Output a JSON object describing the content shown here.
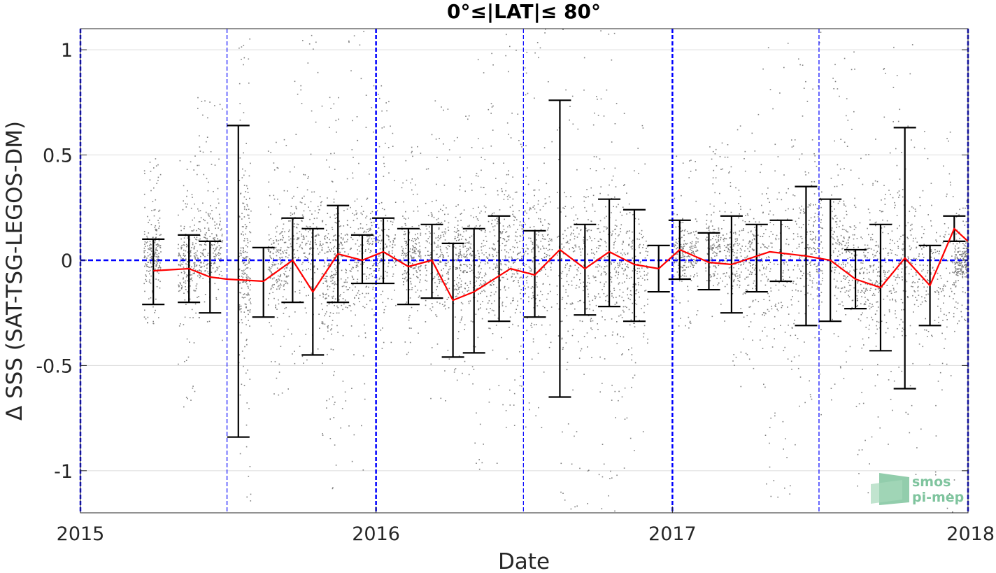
{
  "chart_data": {
    "type": "scatter",
    "title": "0°≤|LAT|≤ 80°",
    "xlabel": "Date",
    "ylabel": "Δ SSS (SAT-TSG-LEGOS-DM)",
    "xlim": [
      "2015-01-01",
      "2018-01-01"
    ],
    "ylim": [
      -1.2,
      1.1
    ],
    "x_ticks": [
      "2015-01-01",
      "2016-01-01",
      "2017-01-01",
      "2018-01-01"
    ],
    "x_tick_labels": [
      "2015",
      "2016",
      "2017",
      "2018"
    ],
    "y_ticks": [
      -1,
      -0.5,
      0,
      0.5,
      1
    ],
    "y_tick_labels": [
      "-1",
      "-0.5",
      "0",
      "0.5",
      "1"
    ],
    "grid": true,
    "legend": "none",
    "year_lines": [
      "2015-01-01",
      "2016-01-01",
      "2017-01-01",
      "2018-01-01"
    ],
    "half_year_lines": [
      "2015-07-01",
      "2016-07-01",
      "2017-07-01"
    ],
    "zero_line": 0,
    "colors": {
      "points": "#7f7f7f",
      "mean_line": "#ff0000",
      "error_bars": "#000000",
      "reference_lines": "#0000ff",
      "grid": "#dcdcdc",
      "logo": "#7fc49e"
    },
    "series": [
      {
        "type": "line",
        "x": [
          "2015-04-01",
          "2015-05-15",
          "2015-06-10",
          "2015-07-01",
          "2015-08-15",
          "2015-09-20",
          "2015-10-15",
          "2015-11-15",
          "2015-12-15",
          "2016-01-10",
          "2016-02-10",
          "2016-03-10",
          "2016-04-05",
          "2016-05-01",
          "2016-06-15",
          "2016-07-15",
          "2016-08-15",
          "2016-09-15",
          "2016-10-15",
          "2016-11-15",
          "2016-12-15",
          "2017-01-10",
          "2017-02-15",
          "2017-03-15",
          "2017-05-01",
          "2017-06-15",
          "2017-07-15",
          "2017-08-15",
          "2017-09-15",
          "2017-10-15",
          "2017-11-15",
          "2017-12-15",
          "2018-01-01"
        ],
        "y": [
          -0.05,
          -0.04,
          -0.08,
          -0.09,
          -0.1,
          0.0,
          -0.15,
          0.03,
          0.0,
          0.04,
          -0.03,
          0.0,
          -0.19,
          -0.15,
          -0.04,
          -0.07,
          0.05,
          -0.04,
          0.04,
          -0.02,
          -0.04,
          0.05,
          -0.01,
          -0.02,
          0.04,
          0.02,
          0.0,
          -0.09,
          -0.13,
          0.01,
          -0.12,
          0.15,
          0.09
        ]
      },
      {
        "type": "errorbar",
        "x": [
          "2015-04-01",
          "2015-05-15",
          "2015-06-10",
          "2015-07-15",
          "2015-08-15",
          "2015-09-20",
          "2015-10-15",
          "2015-11-15",
          "2015-12-15",
          "2016-01-10",
          "2016-02-10",
          "2016-03-10",
          "2016-04-05",
          "2016-05-01",
          "2016-06-01",
          "2016-07-15",
          "2016-08-15",
          "2016-09-15",
          "2016-10-15",
          "2016-11-15",
          "2016-12-15",
          "2017-01-10",
          "2017-02-15",
          "2017-03-15",
          "2017-04-15",
          "2017-05-15",
          "2017-06-15",
          "2017-07-15",
          "2017-08-15",
          "2017-09-15",
          "2017-10-15",
          "2017-11-15",
          "2017-12-15"
        ],
        "upper": [
          0.1,
          0.12,
          0.09,
          0.64,
          0.06,
          0.2,
          0.15,
          0.26,
          0.12,
          0.2,
          0.15,
          0.17,
          0.08,
          0.15,
          0.21,
          0.14,
          0.76,
          0.17,
          0.29,
          0.24,
          0.07,
          0.19,
          0.13,
          0.21,
          0.17,
          0.19,
          0.35,
          0.29,
          0.05,
          0.17,
          0.63,
          0.07,
          0.21
        ],
        "lower": [
          -0.21,
          -0.2,
          -0.25,
          -0.84,
          -0.27,
          -0.2,
          -0.45,
          -0.2,
          -0.11,
          -0.11,
          -0.21,
          -0.18,
          -0.46,
          -0.44,
          -0.29,
          -0.27,
          -0.65,
          -0.26,
          -0.22,
          -0.29,
          -0.15,
          -0.09,
          -0.14,
          -0.25,
          -0.15,
          -0.1,
          -0.31,
          -0.29,
          -0.23,
          -0.43,
          -0.61,
          -0.31,
          0.09
        ]
      },
      {
        "type": "scatter",
        "clusters": [
          {
            "x": [
              "2015-03-20",
              "2015-04-10"
            ],
            "y": [
              -0.3,
              0.5
            ]
          },
          {
            "x": [
              "2015-05-01",
              "2015-05-25"
            ],
            "y": [
              -0.7,
              0.55
            ]
          },
          {
            "x": [
              "2015-05-25",
              "2015-06-25"
            ],
            "y": [
              -0.4,
              0.8
            ]
          },
          {
            "x": [
              "2015-07-15",
              "2015-07-30"
            ],
            "y": [
              -1.2,
              1.1
            ]
          },
          {
            "x": [
              "2015-08-20",
              "2015-09-15"
            ],
            "y": [
              -0.65,
              0.6
            ]
          },
          {
            "x": [
              "2015-09-15",
              "2015-10-25"
            ],
            "y": [
              -0.5,
              1.1
            ]
          },
          {
            "x": [
              "2015-10-25",
              "2015-11-15"
            ],
            "y": [
              -1.1,
              0.85
            ]
          },
          {
            "x": [
              "2015-11-15",
              "2015-12-20"
            ],
            "y": [
              -1.0,
              1.1
            ]
          },
          {
            "x": [
              "2015-12-20",
              "2016-01-25"
            ],
            "y": [
              -0.45,
              0.85
            ]
          },
          {
            "x": [
              "2016-02-01",
              "2016-02-25"
            ],
            "y": [
              -0.45,
              0.55
            ]
          },
          {
            "x": [
              "2016-03-01",
              "2016-04-01"
            ],
            "y": [
              -0.7,
              0.8
            ]
          },
          {
            "x": [
              "2016-04-05",
              "2016-04-30"
            ],
            "y": [
              -0.6,
              0.7
            ]
          },
          {
            "x": [
              "2016-05-01",
              "2016-06-01"
            ],
            "y": [
              -1.05,
              1.0
            ]
          },
          {
            "x": [
              "2016-06-01",
              "2016-07-01"
            ],
            "y": [
              -0.8,
              1.1
            ]
          },
          {
            "x": [
              "2016-07-01",
              "2016-08-05"
            ],
            "y": [
              -0.9,
              1.1
            ]
          },
          {
            "x": [
              "2016-08-10",
              "2016-09-20"
            ],
            "y": [
              -1.2,
              1.1
            ]
          },
          {
            "x": [
              "2016-09-20",
              "2016-10-25"
            ],
            "y": [
              -1.2,
              1.1
            ]
          },
          {
            "x": [
              "2016-10-25",
              "2016-12-01"
            ],
            "y": [
              -1.0,
              0.85
            ]
          },
          {
            "x": [
              "2017-01-01",
              "2017-02-01"
            ],
            "y": [
              -0.35,
              0.55
            ]
          },
          {
            "x": [
              "2017-02-10",
              "2017-03-15"
            ],
            "y": [
              -0.35,
              0.6
            ]
          },
          {
            "x": [
              "2017-03-15",
              "2017-04-20"
            ],
            "y": [
              -0.6,
              0.7
            ]
          },
          {
            "x": [
              "2017-04-20",
              "2017-06-05"
            ],
            "y": [
              -1.2,
              1.1
            ]
          },
          {
            "x": [
              "2017-06-05",
              "2017-07-05"
            ],
            "y": [
              -0.75,
              1.1
            ]
          },
          {
            "x": [
              "2017-07-15",
              "2017-08-15"
            ],
            "y": [
              -0.7,
              1.0
            ]
          },
          {
            "x": [
              "2017-08-15",
              "2017-09-15"
            ],
            "y": [
              -1.2,
              0.6
            ]
          },
          {
            "x": [
              "2017-09-15",
              "2017-10-25"
            ],
            "y": [
              -0.9,
              1.1
            ]
          },
          {
            "x": [
              "2017-10-25",
              "2017-12-15"
            ],
            "y": [
              -1.2,
              0.7
            ]
          },
          {
            "x": [
              "2017-12-15",
              "2018-01-01"
            ],
            "y": [
              -0.3,
              0.3
            ]
          }
        ]
      }
    ]
  },
  "logo": {
    "line1": "smos",
    "line2": "pi-mep"
  }
}
